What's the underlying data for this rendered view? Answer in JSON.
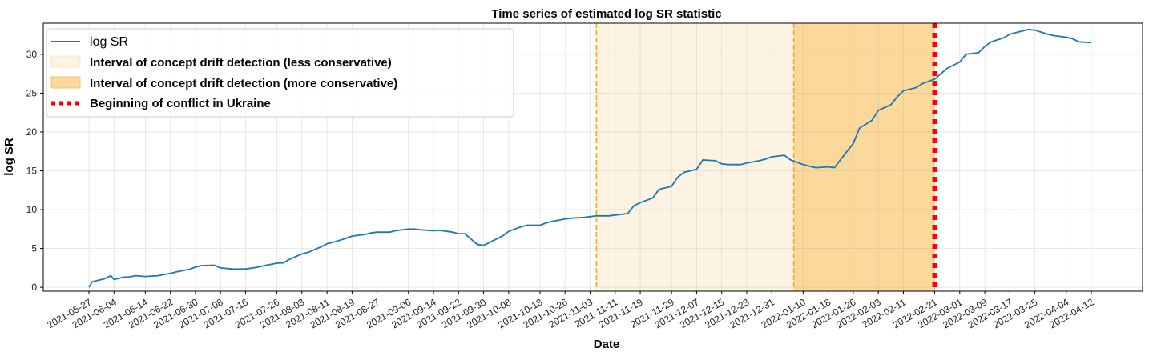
{
  "chart_data": {
    "type": "line",
    "title": "Time series of estimated log SR statistic",
    "xlabel": "Date",
    "ylabel": "log SR",
    "grid": true,
    "legend_placement": "top-left",
    "x_tick_labels": [
      "2021-05-27",
      "2021-06-04",
      "2021-06-14",
      "2021-06-22",
      "2021-06-30",
      "2021-07-08",
      "2021-07-16",
      "2021-07-26",
      "2021-08-03",
      "2021-08-11",
      "2021-08-19",
      "2021-08-27",
      "2021-09-06",
      "2021-09-14",
      "2021-09-22",
      "2021-09-30",
      "2021-10-08",
      "2021-10-18",
      "2021-10-26",
      "2021-11-03",
      "2021-11-11",
      "2021-11-19",
      "2021-11-29",
      "2021-12-07",
      "2021-12-15",
      "2021-12-23",
      "2021-12-31",
      "2022-01-10",
      "2022-01-18",
      "2022-01-26",
      "2022-02-03",
      "2022-02-11",
      "2022-02-21",
      "2022-03-01",
      "2022-03-09",
      "2022-03-17",
      "2022-03-25",
      "2022-04-04",
      "2022-04-12"
    ],
    "y_ticks": [
      0,
      5,
      10,
      15,
      20,
      25,
      30
    ],
    "ylim": [
      -0.5,
      34
    ],
    "series": [
      {
        "name": "log SR",
        "color": "#1f77b4",
        "x": [
          "2021-05-27",
          "2021-05-28",
          "2021-06-01",
          "2021-06-03",
          "2021-06-04",
          "2021-06-07",
          "2021-06-09",
          "2021-06-11",
          "2021-06-14",
          "2021-06-16",
          "2021-06-18",
          "2021-06-22",
          "2021-06-24",
          "2021-06-28",
          "2021-06-30",
          "2021-07-02",
          "2021-07-06",
          "2021-07-08",
          "2021-07-12",
          "2021-07-14",
          "2021-07-16",
          "2021-07-20",
          "2021-07-22",
          "2021-07-26",
          "2021-07-28",
          "2021-07-30",
          "2021-08-03",
          "2021-08-05",
          "2021-08-09",
          "2021-08-11",
          "2021-08-13",
          "2021-08-17",
          "2021-08-19",
          "2021-08-23",
          "2021-08-25",
          "2021-08-27",
          "2021-08-31",
          "2021-09-02",
          "2021-09-06",
          "2021-09-08",
          "2021-09-10",
          "2021-09-14",
          "2021-09-16",
          "2021-09-20",
          "2021-09-22",
          "2021-09-24",
          "2021-09-28",
          "2021-09-30",
          "2021-10-04",
          "2021-10-06",
          "2021-10-08",
          "2021-10-12",
          "2021-10-14",
          "2021-10-18",
          "2021-10-20",
          "2021-10-22",
          "2021-10-26",
          "2021-10-28",
          "2021-11-01",
          "2021-11-03",
          "2021-11-05",
          "2021-11-09",
          "2021-11-11",
          "2021-11-15",
          "2021-11-17",
          "2021-11-19",
          "2021-11-23",
          "2021-11-25",
          "2021-11-29",
          "2021-12-01",
          "2021-12-03",
          "2021-12-07",
          "2021-12-09",
          "2021-12-13",
          "2021-12-15",
          "2021-12-17",
          "2021-12-21",
          "2021-12-23",
          "2021-12-27",
          "2021-12-29",
          "2021-12-31",
          "2022-01-04",
          "2022-01-06",
          "2022-01-10",
          "2022-01-12",
          "2022-01-14",
          "2022-01-18",
          "2022-01-20",
          "2022-01-24",
          "2022-01-26",
          "2022-01-28",
          "2022-02-01",
          "2022-02-03",
          "2022-02-07",
          "2022-02-09",
          "2022-02-11",
          "2022-02-15",
          "2022-02-17",
          "2022-02-21",
          "2022-02-23",
          "2022-02-25",
          "2022-03-01",
          "2022-03-03",
          "2022-03-07",
          "2022-03-09",
          "2022-03-11",
          "2022-03-15",
          "2022-03-17",
          "2022-03-21",
          "2022-03-23",
          "2022-03-25",
          "2022-03-29",
          "2022-03-31",
          "2022-04-04",
          "2022-04-06",
          "2022-04-08",
          "2022-04-12"
        ],
        "values": [
          0.0,
          0.7,
          1.1,
          1.5,
          1.0,
          1.3,
          1.35,
          1.5,
          1.4,
          1.45,
          1.5,
          1.8,
          2.0,
          2.3,
          2.6,
          2.8,
          2.85,
          2.5,
          2.35,
          2.35,
          2.35,
          2.6,
          2.8,
          3.1,
          3.15,
          3.6,
          4.3,
          4.5,
          5.2,
          5.6,
          5.8,
          6.3,
          6.6,
          6.8,
          7.0,
          7.1,
          7.1,
          7.3,
          7.5,
          7.5,
          7.4,
          7.3,
          7.35,
          7.1,
          6.9,
          6.9,
          5.5,
          5.4,
          6.2,
          6.6,
          7.2,
          7.8,
          8.0,
          8.0,
          8.3,
          8.5,
          8.8,
          8.9,
          9.0,
          9.1,
          9.2,
          9.2,
          9.3,
          9.5,
          10.5,
          10.9,
          11.5,
          12.6,
          13.0,
          14.2,
          14.8,
          15.2,
          16.4,
          16.3,
          15.9,
          15.8,
          15.8,
          16.0,
          16.3,
          16.5,
          16.8,
          17.0,
          16.4,
          15.8,
          15.6,
          15.4,
          15.5,
          15.4,
          17.5,
          18.5,
          20.5,
          21.5,
          22.8,
          23.5,
          24.5,
          25.3,
          25.7,
          26.2,
          26.8,
          27.5,
          28.2,
          29.0,
          30.0,
          30.2,
          31.0,
          31.6,
          32.1,
          32.6,
          33.0,
          33.2,
          33.1,
          32.6,
          32.4,
          32.2,
          32.0,
          31.6,
          31.5
        ]
      }
    ],
    "shaded_intervals": [
      {
        "name": "Interval of concept drift detection (less conservative)",
        "start": "2021-11-05",
        "end": "2022-02-21",
        "color": "#fdf3e2"
      },
      {
        "name": "Interval of concept drift detection (more conservative)",
        "start": "2022-01-07",
        "end": "2022-02-21",
        "color": "#fcd89a"
      }
    ],
    "vertical_lines": [
      {
        "date": "2021-11-05",
        "style": "dashed",
        "color": "#f5a623"
      },
      {
        "date": "2022-01-07",
        "style": "dashed",
        "color": "#f5a623"
      },
      {
        "name": "Beginning of conflict in Ukraine",
        "date": "2022-02-21",
        "style": "dotted",
        "color": "#ff0000"
      }
    ]
  }
}
